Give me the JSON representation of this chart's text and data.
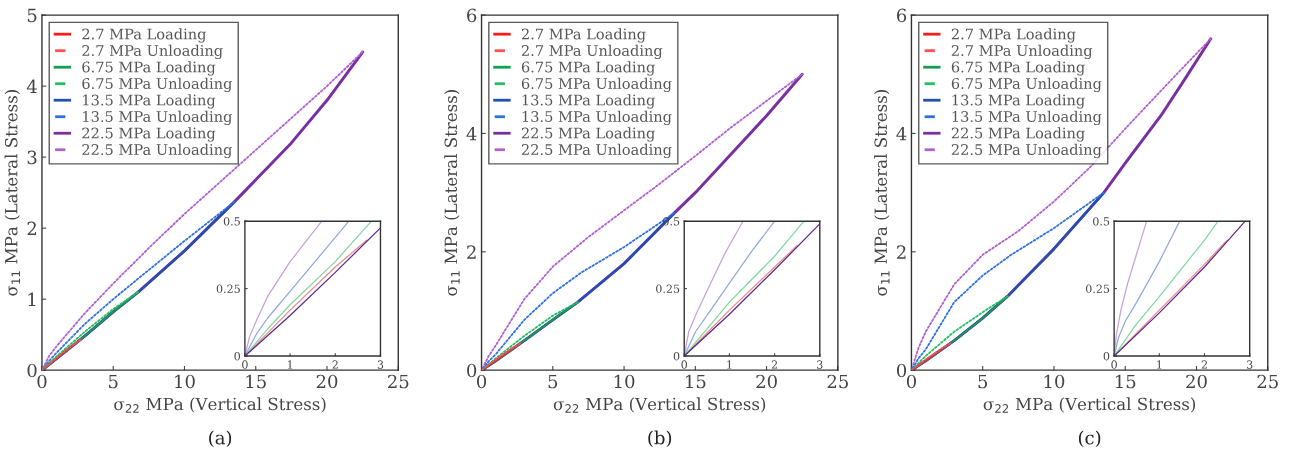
{
  "chart_data": [
    {
      "type": "line",
      "xlabel": "σ$_{22}$ MPa (Vertical Stress)",
      "ylabel": "σ$_{11}$ MPa (Lateral Stress)",
      "annotations": [
        "(a)"
      ],
      "xlim": [
        0,
        25
      ],
      "ylim": [
        0,
        5
      ],
      "xticks": [
        0,
        5,
        10,
        15,
        20,
        25
      ],
      "yticks": [
        0,
        1,
        2,
        3,
        4,
        5
      ],
      "legend": "top left",
      "grid": false,
      "series": [
        {
          "name": "2.7 MPa Loading",
          "color": "#ff1a1a",
          "line_style": "solid",
          "x": [
            0,
            1,
            2,
            2.7
          ],
          "values": [
            0,
            0.16,
            0.32,
            0.43
          ]
        },
        {
          "name": "2.7 MPa Unloading",
          "color": "#ff5050",
          "line_style": "dotted",
          "x": [
            2.7,
            2,
            1,
            0
          ],
          "values": [
            0.43,
            0.33,
            0.17,
            0
          ]
        },
        {
          "name": "6.75 MPa Loading",
          "color": "#10a050",
          "line_style": "solid",
          "x": [
            0,
            1,
            3,
            5,
            6.75
          ],
          "values": [
            0,
            0.16,
            0.48,
            0.82,
            1.1
          ]
        },
        {
          "name": "6.75 MPa Unloading",
          "color": "#20c060",
          "line_style": "dotted",
          "x": [
            6.75,
            5,
            3,
            1,
            0
          ],
          "values": [
            1.1,
            0.86,
            0.54,
            0.19,
            0
          ]
        },
        {
          "name": "13.5 MPa Loading",
          "color": "#2050b0",
          "line_style": "solid",
          "x": [
            0,
            1,
            3,
            5,
            6.75,
            10,
            13.5
          ],
          "values": [
            0,
            0.16,
            0.48,
            0.82,
            1.1,
            1.68,
            2.37
          ]
        },
        {
          "name": "13.5 MPa Unloading",
          "color": "#3070e0",
          "line_style": "dotted",
          "x": [
            13.5,
            10,
            7,
            5,
            3,
            1,
            0.5,
            0
          ],
          "values": [
            2.37,
            1.82,
            1.33,
            1.0,
            0.65,
            0.24,
            0.13,
            0
          ]
        },
        {
          "name": "22.5 MPa Loading",
          "color": "#7a2fa0",
          "line_style": "solid",
          "x": [
            0,
            1,
            3,
            5,
            6.75,
            10,
            13.5,
            15,
            17.5,
            20,
            22.5
          ],
          "values": [
            0,
            0.16,
            0.48,
            0.82,
            1.1,
            1.68,
            2.37,
            2.68,
            3.2,
            3.8,
            4.48
          ]
        },
        {
          "name": "22.5 MPa Unloading",
          "color": "#b060d0",
          "line_style": "dotted",
          "x": [
            22.5,
            20,
            17.5,
            15,
            12.5,
            10,
            7.5,
            5,
            3,
            1,
            0.5,
            0
          ],
          "values": [
            4.48,
            4.0,
            3.55,
            3.1,
            2.65,
            2.2,
            1.72,
            1.22,
            0.8,
            0.33,
            0.2,
            0
          ]
        }
      ]
    },
    {
      "type": "line",
      "xlim": [
        0,
        3
      ],
      "ylim": [
        0,
        0.5
      ],
      "xticks": [
        0,
        1,
        2,
        3
      ],
      "yticks": [
        0,
        0.25,
        0.5
      ],
      "grid": false,
      "series": [
        {
          "color": "#f08a8a",
          "line_style": "solid",
          "x": [
            0,
            1,
            2,
            2.7
          ],
          "values": [
            0,
            0.17,
            0.33,
            0.43
          ]
        },
        {
          "color": "#80d8a0",
          "line_style": "solid",
          "x": [
            0,
            0.5,
            1,
            2,
            2.8
          ],
          "values": [
            0,
            0.1,
            0.19,
            0.35,
            0.5
          ]
        },
        {
          "color": "#90a8e0",
          "line_style": "solid",
          "x": [
            0,
            0.25,
            0.5,
            1,
            1.5,
            2.3
          ],
          "values": [
            0,
            0.08,
            0.14,
            0.24,
            0.34,
            0.5
          ]
        },
        {
          "color": "#c8a0dc",
          "line_style": "solid",
          "x": [
            0,
            0.1,
            0.25,
            0.5,
            1,
            1.7
          ],
          "values": [
            0,
            0.07,
            0.13,
            0.22,
            0.35,
            0.5
          ]
        },
        {
          "color": "#5a2a90",
          "line_style": "solid",
          "x": [
            0,
            1,
            2,
            3
          ],
          "values": [
            0,
            0.15,
            0.31,
            0.475
          ]
        }
      ]
    },
    {
      "type": "line",
      "xlabel": "σ$_{22}$ MPa (Vertical Stress)",
      "ylabel": "σ$_{11}$ MPa (Lateral Stress)",
      "annotations": [
        "(b)"
      ],
      "xlim": [
        0,
        25
      ],
      "ylim": [
        0,
        6
      ],
      "xticks": [
        0,
        5,
        10,
        15,
        20,
        25
      ],
      "yticks": [
        0,
        2,
        4,
        6
      ],
      "legend": "top left",
      "grid": false,
      "series": [
        {
          "name": "2.7 MPa Loading",
          "color": "#ff1a1a",
          "line_style": "solid",
          "x": [
            0,
            1,
            2,
            2.7
          ],
          "values": [
            0,
            0.16,
            0.33,
            0.45
          ]
        },
        {
          "name": "2.7 MPa Unloading",
          "color": "#ff5050",
          "line_style": "dotted",
          "x": [
            2.7,
            2,
            1,
            0
          ],
          "values": [
            0.45,
            0.35,
            0.18,
            0
          ]
        },
        {
          "name": "6.75 MPa Loading",
          "color": "#10a050",
          "line_style": "solid",
          "x": [
            0,
            1,
            3,
            5,
            6.75
          ],
          "values": [
            0,
            0.16,
            0.5,
            0.85,
            1.15
          ]
        },
        {
          "name": "6.75 MPa Unloading",
          "color": "#20c060",
          "line_style": "dotted",
          "x": [
            6.75,
            5,
            3,
            1,
            0
          ],
          "values": [
            1.15,
            0.92,
            0.58,
            0.2,
            0
          ]
        },
        {
          "name": "13.5 MPa Loading",
          "color": "#2050b0",
          "line_style": "solid",
          "x": [
            0,
            1,
            3,
            5,
            6.75,
            10,
            13.5
          ],
          "values": [
            0,
            0.16,
            0.5,
            0.85,
            1.15,
            1.8,
            2.65
          ]
        },
        {
          "name": "13.5 MPa Unloading",
          "color": "#3070e0",
          "line_style": "dotted",
          "x": [
            13.5,
            10,
            7,
            5,
            3,
            1,
            0.5,
            0
          ],
          "values": [
            2.65,
            2.08,
            1.65,
            1.3,
            0.85,
            0.27,
            0.15,
            0
          ]
        },
        {
          "name": "22.5 MPa Loading",
          "color": "#7a2fa0",
          "line_style": "solid",
          "x": [
            0,
            1,
            3,
            5,
            6.75,
            10,
            13.5,
            15,
            17.5,
            20,
            22.5
          ],
          "values": [
            0,
            0.16,
            0.5,
            0.85,
            1.15,
            1.8,
            2.65,
            3.0,
            3.65,
            4.3,
            5.0
          ]
        },
        {
          "name": "22.5 MPa Unloading",
          "color": "#b060d0",
          "line_style": "dotted",
          "x": [
            22.5,
            20,
            17.5,
            15,
            12.5,
            10,
            7.5,
            5,
            3,
            1,
            0.5,
            0
          ],
          "values": [
            5.0,
            4.55,
            4.1,
            3.62,
            3.15,
            2.7,
            2.25,
            1.75,
            1.2,
            0.42,
            0.24,
            0
          ]
        }
      ]
    },
    {
      "type": "line",
      "xlim": [
        0,
        3
      ],
      "ylim": [
        0,
        0.5
      ],
      "xticks": [
        0,
        1,
        2,
        3
      ],
      "yticks": [
        0,
        0.25,
        0.5
      ],
      "grid": false,
      "series": [
        {
          "color": "#f08a8a",
          "line_style": "solid",
          "x": [
            0,
            1,
            2,
            2.5
          ],
          "values": [
            0,
            0.17,
            0.33,
            0.41
          ]
        },
        {
          "color": "#80d8a0",
          "line_style": "solid",
          "x": [
            0,
            0.5,
            1,
            2,
            2.65
          ],
          "values": [
            0,
            0.1,
            0.2,
            0.37,
            0.5
          ]
        },
        {
          "color": "#90a8e0",
          "line_style": "solid",
          "x": [
            0,
            0.25,
            0.5,
            1,
            1.5,
            2.0
          ],
          "values": [
            0,
            0.09,
            0.15,
            0.27,
            0.39,
            0.5
          ]
        },
        {
          "color": "#c8a0dc",
          "line_style": "solid",
          "x": [
            0,
            0.1,
            0.25,
            0.5,
            0.9,
            1.3
          ],
          "values": [
            0,
            0.09,
            0.15,
            0.24,
            0.38,
            0.5
          ]
        },
        {
          "color": "#5a2a90",
          "line_style": "solid",
          "x": [
            0,
            1,
            2,
            3
          ],
          "values": [
            0,
            0.155,
            0.32,
            0.49
          ]
        }
      ]
    },
    {
      "type": "line",
      "xlabel": "σ$_{22}$ MPa (Vertical Stress)",
      "ylabel": "σ$_{11}$ MPa (Lateral Stress)",
      "annotations": [
        "(c)"
      ],
      "xlim": [
        0,
        25
      ],
      "ylim": [
        0,
        6
      ],
      "xticks": [
        0,
        5,
        10,
        15,
        20,
        25
      ],
      "yticks": [
        0,
        2,
        4,
        6
      ],
      "legend": "top left",
      "grid": false,
      "series": [
        {
          "name": "2.7 MPa Loading",
          "color": "#ff1a1a",
          "line_style": "solid",
          "x": [
            0,
            1,
            2,
            2.7
          ],
          "values": [
            0,
            0.16,
            0.33,
            0.45
          ]
        },
        {
          "name": "2.7 MPa Unloading",
          "color": "#ff5050",
          "line_style": "dotted",
          "x": [
            2.7,
            2,
            1,
            0
          ],
          "values": [
            0.45,
            0.35,
            0.18,
            0
          ]
        },
        {
          "name": "6.75 MPa Loading",
          "color": "#10a050",
          "line_style": "solid",
          "x": [
            0,
            1,
            3,
            5,
            6.75
          ],
          "values": [
            0,
            0.16,
            0.5,
            0.88,
            1.25
          ]
        },
        {
          "name": "6.75 MPa Unloading",
          "color": "#20c060",
          "line_style": "dotted",
          "x": [
            6.75,
            5,
            3,
            1,
            0
          ],
          "values": [
            1.25,
            0.98,
            0.65,
            0.24,
            0
          ]
        },
        {
          "name": "13.5 MPa Loading",
          "color": "#2050b0",
          "line_style": "solid",
          "x": [
            0,
            1,
            3,
            5,
            6.75,
            10,
            13.5
          ],
          "values": [
            0,
            0.16,
            0.5,
            0.88,
            1.25,
            2.05,
            3.0
          ]
        },
        {
          "name": "13.5 MPa Unloading",
          "color": "#3070e0",
          "line_style": "dotted",
          "x": [
            13.5,
            10,
            7,
            5,
            3,
            1,
            0.5,
            0
          ],
          "values": [
            3.0,
            2.4,
            1.95,
            1.6,
            1.15,
            0.35,
            0.2,
            0
          ]
        },
        {
          "name": "22.5 MPa Loading",
          "color": "#7a2fa0",
          "line_style": "solid",
          "x": [
            0,
            1,
            3,
            5,
            6.75,
            10,
            13.5,
            15,
            17.5,
            19,
            21
          ],
          "values": [
            0,
            0.16,
            0.5,
            0.88,
            1.25,
            2.05,
            3.0,
            3.5,
            4.3,
            4.85,
            5.6
          ]
        },
        {
          "name": "22.5 MPa Unloading",
          "color": "#b060d0",
          "line_style": "dotted",
          "x": [
            21,
            19,
            17.5,
            15,
            12.5,
            10,
            7.5,
            5,
            3,
            1,
            0.5,
            0
          ],
          "values": [
            5.6,
            5.1,
            4.72,
            4.08,
            3.42,
            2.85,
            2.35,
            1.95,
            1.45,
            0.65,
            0.38,
            0
          ]
        }
      ]
    },
    {
      "type": "line",
      "xlim": [
        0,
        3
      ],
      "ylim": [
        0,
        0.5
      ],
      "xticks": [
        0,
        1,
        2,
        3
      ],
      "yticks": [
        0,
        0.25,
        0.5
      ],
      "grid": false,
      "series": [
        {
          "color": "#f08a8a",
          "line_style": "solid",
          "x": [
            0,
            1,
            2,
            2.5
          ],
          "values": [
            0,
            0.17,
            0.34,
            0.43
          ]
        },
        {
          "color": "#80d8a0",
          "line_style": "solid",
          "x": [
            0,
            0.5,
            1,
            2,
            2.3
          ],
          "values": [
            0,
            0.12,
            0.22,
            0.43,
            0.5
          ]
        },
        {
          "color": "#90a8e0",
          "line_style": "solid",
          "x": [
            0,
            0.1,
            0.25,
            0.5,
            1,
            1.45
          ],
          "values": [
            0,
            0.07,
            0.13,
            0.2,
            0.35,
            0.5
          ]
        },
        {
          "color": "#c8a0dc",
          "line_style": "solid",
          "x": [
            0,
            0.05,
            0.15,
            0.3,
            0.5,
            0.72
          ],
          "values": [
            0,
            0.08,
            0.17,
            0.27,
            0.38,
            0.5
          ]
        },
        {
          "color": "#5a2a90",
          "line_style": "solid",
          "x": [
            0,
            1,
            2,
            2.9
          ],
          "values": [
            0,
            0.16,
            0.33,
            0.5
          ]
        }
      ]
    }
  ]
}
